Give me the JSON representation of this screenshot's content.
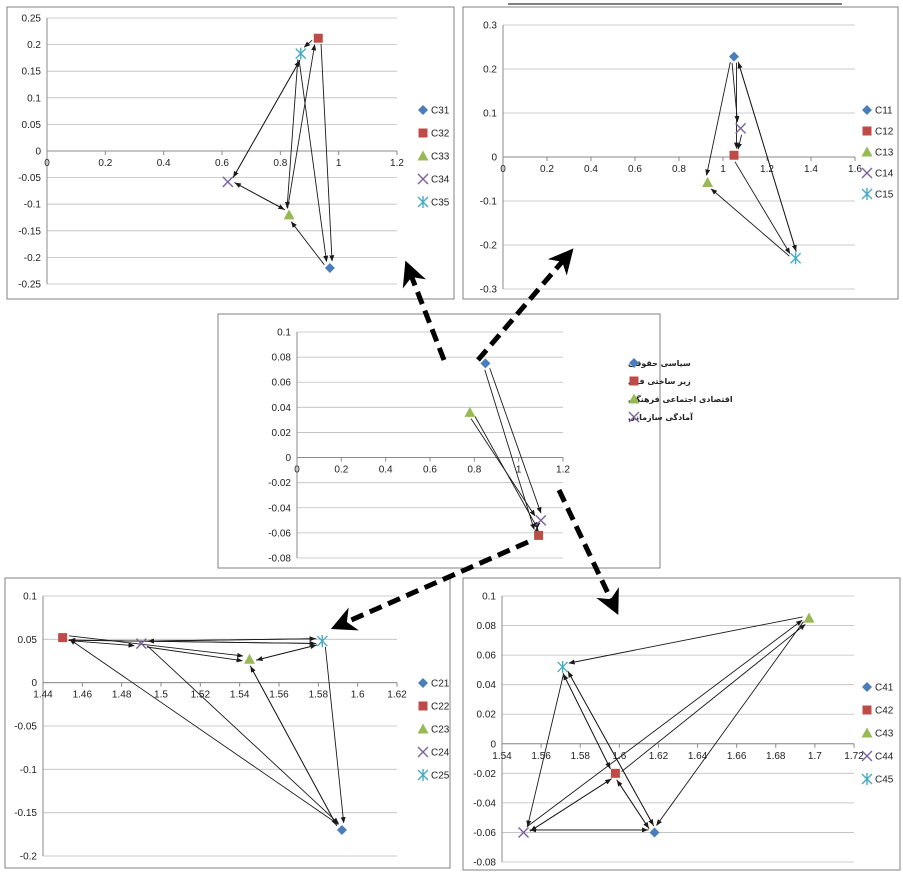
{
  "chart_data": [
    {
      "id": "p1",
      "type": "scatter",
      "xlim": [
        0,
        1.2
      ],
      "ylim": [
        -0.25,
        0.25
      ],
      "xticks": [
        0,
        0.2,
        0.4,
        0.6,
        0.8,
        1,
        1.2
      ],
      "yticks": [
        0.25,
        0.2,
        0.15,
        0.1,
        0.05,
        0,
        -0.05,
        -0.1,
        -0.15,
        -0.2,
        -0.25
      ],
      "grid": true,
      "legend_position": "right",
      "series": [
        {
          "name": "C31",
          "x": 0.97,
          "y": -0.22,
          "marker": "diamond",
          "color": "#4a7ebb"
        },
        {
          "name": "C32",
          "x": 0.93,
          "y": 0.212,
          "marker": "square",
          "color": "#be4b48"
        },
        {
          "name": "C33",
          "x": 0.83,
          "y": -0.12,
          "marker": "triangle",
          "color": "#98b954"
        },
        {
          "name": "C34",
          "x": 0.62,
          "y": -0.058,
          "marker": "x",
          "color": "#7d60a0"
        },
        {
          "name": "C35",
          "x": 0.87,
          "y": 0.183,
          "marker": "star",
          "color": "#46aac5"
        }
      ],
      "arrows": [
        [
          3,
          4
        ],
        [
          4,
          3
        ],
        [
          1,
          4
        ],
        [
          1,
          0
        ],
        [
          4,
          0
        ],
        [
          2,
          1
        ],
        [
          4,
          2
        ],
        [
          3,
          2
        ],
        [
          2,
          3
        ],
        [
          0,
          2
        ]
      ]
    },
    {
      "id": "p2",
      "type": "scatter",
      "xlim": [
        0,
        1.6
      ],
      "ylim": [
        -0.3,
        0.3
      ],
      "xticks": [
        0,
        0.2,
        0.4,
        0.6,
        0.8,
        1,
        1.2,
        1.4,
        1.6
      ],
      "yticks": [
        0.3,
        0.2,
        0.1,
        0,
        -0.1,
        -0.2,
        -0.3
      ],
      "grid": true,
      "legend_position": "right",
      "series": [
        {
          "name": "C11",
          "x": 1.05,
          "y": 0.228,
          "marker": "diamond",
          "color": "#4a7ebb"
        },
        {
          "name": "C12",
          "x": 1.05,
          "y": 0.004,
          "marker": "square",
          "color": "#be4b48"
        },
        {
          "name": "C13",
          "x": 0.93,
          "y": -0.058,
          "marker": "triangle",
          "color": "#98b954"
        },
        {
          "name": "C14",
          "x": 1.08,
          "y": 0.065,
          "marker": "x",
          "color": "#7d60a0"
        },
        {
          "name": "C15",
          "x": 1.33,
          "y": -0.23,
          "marker": "star",
          "color": "#46aac5"
        }
      ],
      "arrows": [
        [
          0,
          2
        ],
        [
          0,
          1
        ],
        [
          0,
          3
        ],
        [
          0,
          4
        ],
        [
          1,
          4
        ],
        [
          4,
          2
        ],
        [
          4,
          0
        ],
        [
          3,
          1
        ]
      ]
    },
    {
      "id": "p3",
      "type": "scatter",
      "xlim": [
        0,
        1.2
      ],
      "ylim": [
        -0.08,
        0.1
      ],
      "xticks": [
        0,
        0.2,
        0.4,
        0.6,
        0.8,
        1,
        1.2
      ],
      "yticks": [
        0.1,
        0.08,
        0.06,
        0.04,
        0.02,
        0,
        -0.02,
        -0.04,
        -0.06,
        -0.08
      ],
      "grid": true,
      "legend_position": "right",
      "series": [
        {
          "name": "سیاسی حقوقی",
          "x": 0.85,
          "y": 0.075,
          "marker": "diamond",
          "color": "#4a7ebb"
        },
        {
          "name": "زیر ساختی فنی",
          "x": 1.09,
          "y": -0.062,
          "marker": "square",
          "color": "#be4b48"
        },
        {
          "name": "اقتصادی اجتماعی فرهنگی",
          "x": 0.78,
          "y": 0.036,
          "marker": "triangle",
          "color": "#98b954"
        },
        {
          "name": "آمادگی سازمانی",
          "x": 1.1,
          "y": -0.05,
          "marker": "x",
          "color": "#7d60a0"
        }
      ],
      "arrows": [
        [
          0,
          1
        ],
        [
          0,
          3
        ],
        [
          2,
          3
        ],
        [
          2,
          1
        ],
        [
          3,
          1
        ],
        [
          1,
          3
        ]
      ]
    },
    {
      "id": "p4",
      "type": "scatter",
      "xlim": [
        1.44,
        1.62
      ],
      "ylim": [
        -0.2,
        0.1
      ],
      "xticks": [
        1.44,
        1.46,
        1.48,
        1.5,
        1.52,
        1.54,
        1.56,
        1.58,
        1.6,
        1.62
      ],
      "yticks": [
        0.1,
        0.05,
        0,
        -0.05,
        -0.1,
        -0.15,
        -0.2
      ],
      "grid": true,
      "legend_position": "right",
      "series": [
        {
          "name": "C21",
          "x": 1.592,
          "y": -0.17,
          "marker": "diamond",
          "color": "#4a7ebb"
        },
        {
          "name": "C22",
          "x": 1.45,
          "y": 0.052,
          "marker": "square",
          "color": "#be4b48"
        },
        {
          "name": "C23",
          "x": 1.545,
          "y": 0.027,
          "marker": "triangle",
          "color": "#98b954"
        },
        {
          "name": "C24",
          "x": 1.49,
          "y": 0.045,
          "marker": "x",
          "color": "#7d60a0"
        },
        {
          "name": "C25",
          "x": 1.582,
          "y": 0.048,
          "marker": "star",
          "color": "#46aac5"
        }
      ],
      "arrows": [
        [
          1,
          4
        ],
        [
          4,
          1
        ],
        [
          1,
          3
        ],
        [
          3,
          4
        ],
        [
          4,
          3
        ],
        [
          1,
          2
        ],
        [
          2,
          4
        ],
        [
          4,
          2
        ],
        [
          3,
          2
        ],
        [
          3,
          0
        ],
        [
          0,
          1
        ],
        [
          0,
          2
        ],
        [
          2,
          0
        ],
        [
          4,
          0
        ]
      ]
    },
    {
      "id": "p5",
      "type": "scatter",
      "xlim": [
        1.54,
        1.72
      ],
      "ylim": [
        -0.08,
        0.1
      ],
      "xticks": [
        1.54,
        1.56,
        1.58,
        1.6,
        1.62,
        1.64,
        1.66,
        1.68,
        1.7,
        1.72
      ],
      "yticks": [
        0.1,
        0.08,
        0.06,
        0.04,
        0.02,
        0,
        -0.02,
        -0.04,
        -0.06,
        -0.08
      ],
      "grid": true,
      "legend_position": "right",
      "series": [
        {
          "name": "C41",
          "x": 1.618,
          "y": -0.06,
          "marker": "diamond",
          "color": "#4a7ebb"
        },
        {
          "name": "C42",
          "x": 1.598,
          "y": -0.02,
          "marker": "square",
          "color": "#be4b48"
        },
        {
          "name": "C43",
          "x": 1.697,
          "y": 0.085,
          "marker": "triangle",
          "color": "#98b954"
        },
        {
          "name": "C44",
          "x": 1.551,
          "y": -0.06,
          "marker": "x",
          "color": "#7d60a0"
        },
        {
          "name": "C45",
          "x": 1.571,
          "y": 0.052,
          "marker": "star",
          "color": "#46aac5"
        }
      ],
      "arrows": [
        [
          2,
          4
        ],
        [
          4,
          0
        ],
        [
          0,
          4
        ],
        [
          4,
          3
        ],
        [
          4,
          1
        ],
        [
          1,
          4
        ],
        [
          3,
          1
        ],
        [
          1,
          3
        ],
        [
          1,
          2
        ],
        [
          3,
          2
        ],
        [
          2,
          0
        ],
        [
          3,
          0
        ],
        [
          0,
          3
        ],
        [
          0,
          1
        ],
        [
          1,
          0
        ]
      ]
    }
  ]
}
